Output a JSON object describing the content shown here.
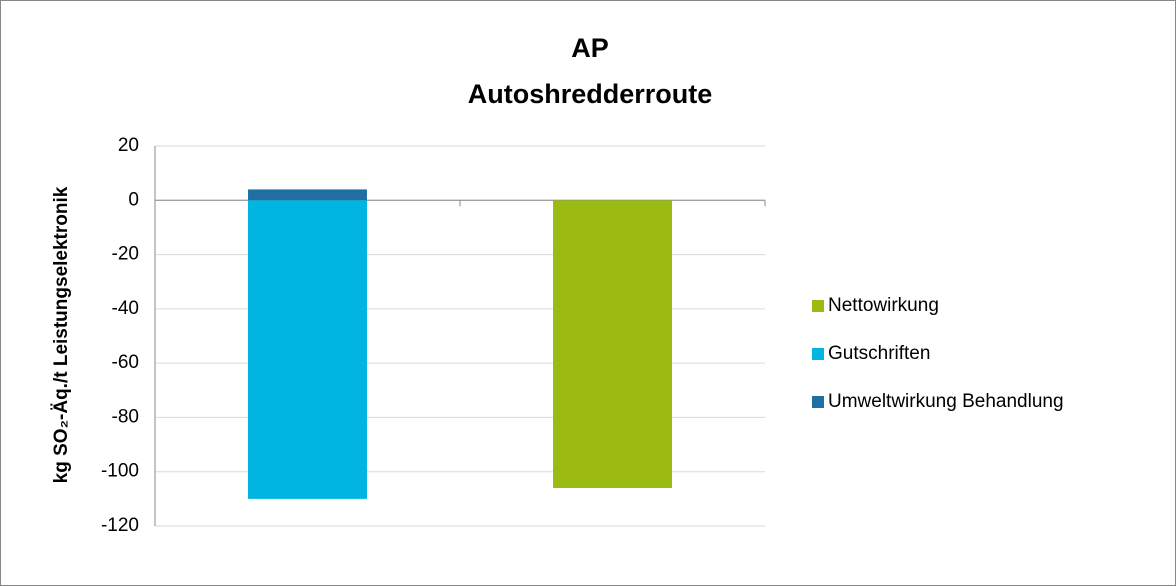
{
  "chart_data": {
    "type": "stacked_bar",
    "title": [
      "AP",
      "Autoshredderroute"
    ],
    "y_label": "kg SO₂-Äq./t Leistungselektronik",
    "categories": [
      null,
      null
    ],
    "series": [
      {
        "name": "Nettowirkung",
        "color": "#9bbb12",
        "values": [
          null,
          -106
        ]
      },
      {
        "name": "Gutschriften",
        "color": "#00b5e0",
        "values": [
          -110,
          null
        ]
      },
      {
        "name": "Umweltwirkung Behandlung",
        "color": "#1f6fa3",
        "values": [
          4,
          null
        ]
      }
    ],
    "ylim": [
      -120,
      20
    ],
    "yticks": [
      -120,
      -100,
      -80,
      -60,
      -40,
      -20,
      0,
      20
    ],
    "grid": true,
    "legend": "right"
  }
}
